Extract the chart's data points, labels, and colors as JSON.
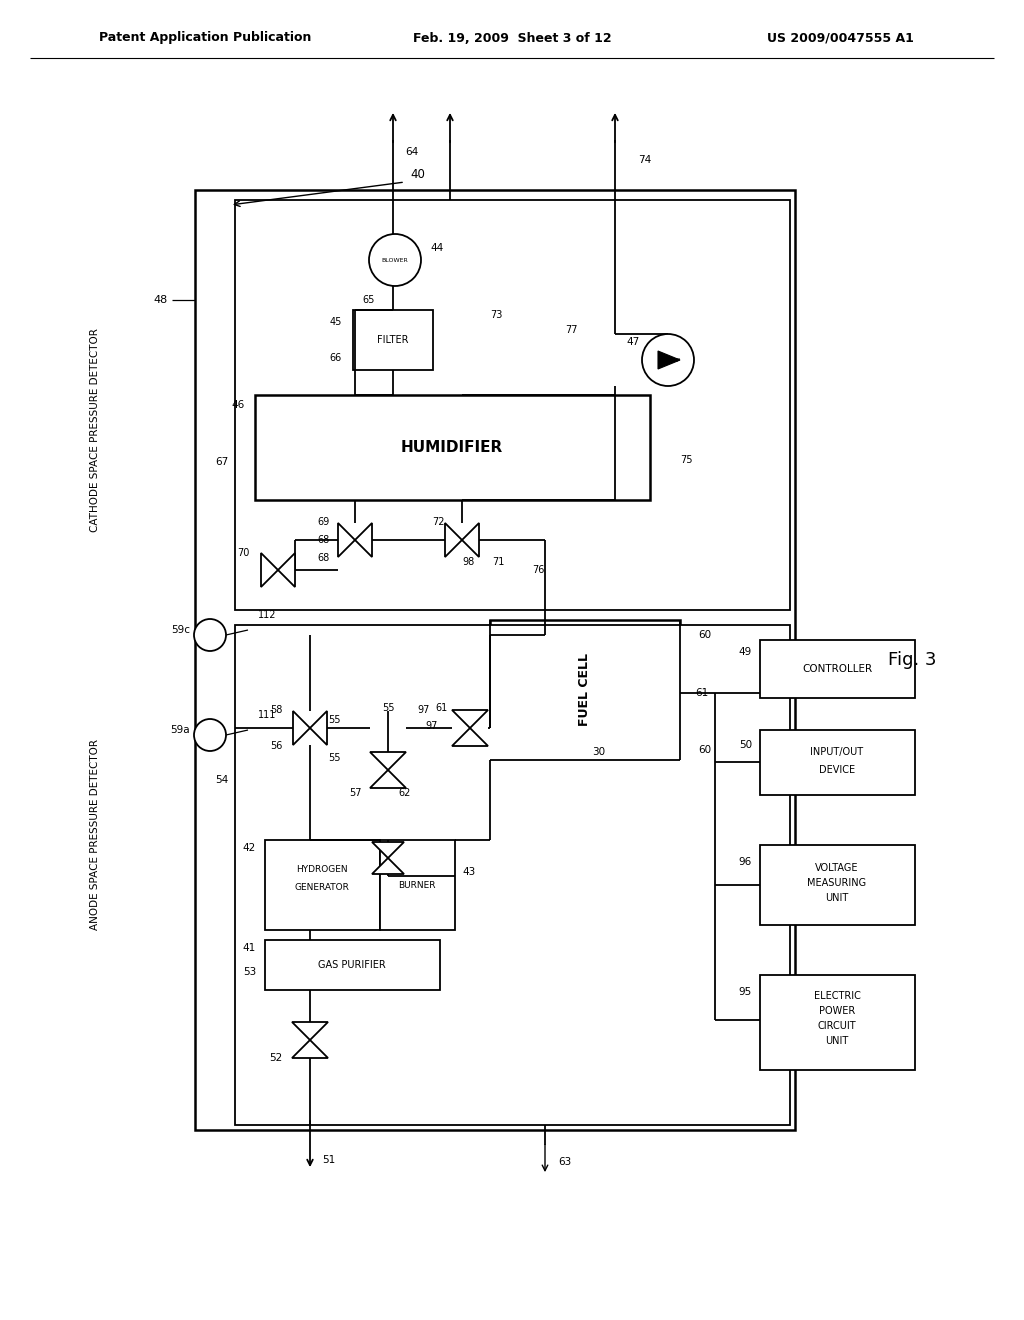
{
  "bg": "#ffffff",
  "tc": "#000000",
  "lc": "#000000",
  "header_left": "Patent Application Publication",
  "header_mid": "Feb. 19, 2009  Sheet 3 of 12",
  "header_right": "US 2009/0047555 A1",
  "fig_label": "Fig. 3",
  "lw": 1.3
}
